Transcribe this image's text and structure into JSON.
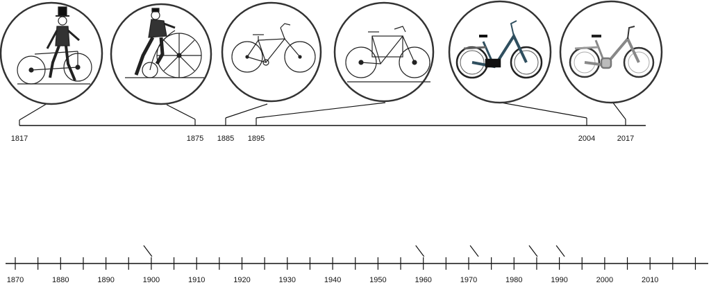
{
  "top_timeline": {
    "years": [
      "1817",
      "1875",
      "1885",
      "1895",
      "2004",
      "2017"
    ],
    "bicycles": [
      {
        "icon": "dandy-horse-icon",
        "year": "1817"
      },
      {
        "icon": "penny-farthing-icon",
        "year": "1875"
      },
      {
        "icon": "safety-bicycle-icon",
        "year": "1885"
      },
      {
        "icon": "cargo-bicycle-icon",
        "year": "1895"
      },
      {
        "icon": "city-bicycle-icon",
        "year": "2004"
      },
      {
        "icon": "electric-bicycle-icon",
        "year": "2017"
      }
    ]
  },
  "bottom_timeline": {
    "labels": [
      "1870",
      "1880",
      "1890",
      "1900",
      "1910",
      "1920",
      "1930",
      "1940",
      "1950",
      "1960",
      "1970",
      "1980",
      "1990",
      "2000",
      "2010"
    ],
    "markers": [
      "1900",
      "1960",
      "1972",
      "1985",
      "1991"
    ]
  },
  "colors": {
    "line": "#111111",
    "circle_stroke": "#333333",
    "city_bike": "#2f4f5f"
  }
}
